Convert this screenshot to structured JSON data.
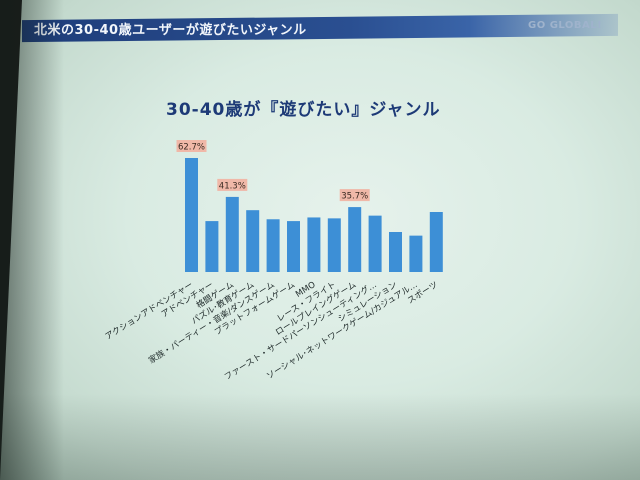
{
  "header": {
    "title": "北米の30-40歳ユーザーが遊びたいジャンル",
    "brand": "GO GLOBAL!"
  },
  "colors": {
    "bar": "#3d8fd6",
    "label_box": "#f0b8a8",
    "title": "#1d3a77",
    "banner": "#2a4f91"
  },
  "chart_data": {
    "type": "bar",
    "title": "30-40歳が『遊びたい』ジャンル",
    "xlabel": "",
    "ylabel": "",
    "ylim": [
      0,
      70
    ],
    "grid": false,
    "categories": [
      "アクションアドベンチャー",
      "アドベンチャー",
      "格闘ゲーム",
      "パズル･教育ゲーム",
      "家族・パーティー・音楽/ダンスゲーム",
      "プラットフォームゲーム",
      "MMO",
      "レース・フライト",
      "ロールプレイングゲーム",
      "ファースト・サードパーソンシューティング…",
      "シミュレーション",
      "ソーシャル･ネットワークゲーム/カジュアル…",
      "スポーツ"
    ],
    "values": [
      62.7,
      28.0,
      41.3,
      34.0,
      29.0,
      28.0,
      30.0,
      29.5,
      35.7,
      31.0,
      22.0,
      20.0,
      33.0
    ],
    "data_labels": [
      {
        "index": 0,
        "text": "62.7%"
      },
      {
        "index": 2,
        "text": "41.3%"
      },
      {
        "index": 8,
        "text": "35.7%"
      }
    ]
  }
}
